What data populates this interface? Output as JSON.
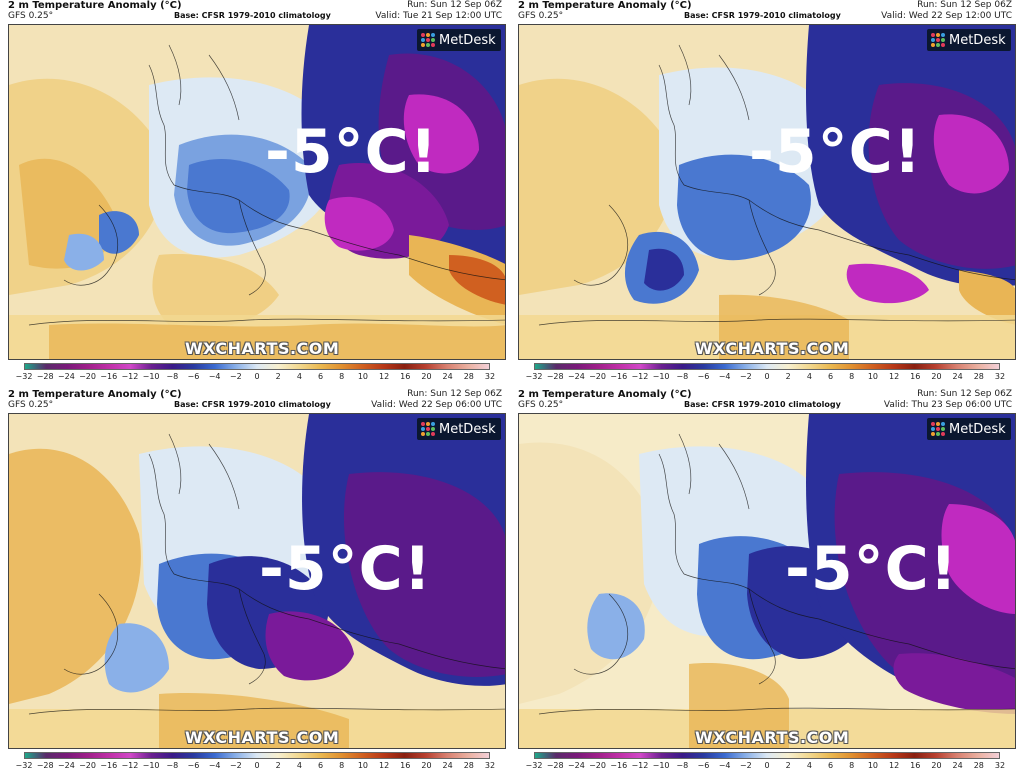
{
  "panels": [
    {
      "title": "2 m Temperature Anomaly (°C)",
      "model": "GFS 0.25°",
      "base": "Base: CFSR 1979-2010 climatology",
      "run": "Run: Sun 12 Sep 06Z",
      "valid": "Valid: Tue 21 Sep 12:00 UTC",
      "overlay_text": "-5°C!",
      "watermark": "WXCHARTS.COM",
      "brand": "MetDesk"
    },
    {
      "title": "2 m Temperature Anomaly (°C)",
      "model": "GFS 0.25°",
      "base": "Base: CFSR 1979-2010 climatology",
      "run": "Run: Sun 12 Sep 06Z",
      "valid": "Valid: Wed 22 Sep 12:00 UTC",
      "overlay_text": "-5°C!",
      "watermark": "WXCHARTS.COM",
      "brand": "MetDesk"
    },
    {
      "title": "2 m Temperature Anomaly (°C)",
      "model": "GFS 0.25°",
      "base": "Base: CFSR 1979-2010 climatology",
      "run": "Run: Sun 12 Sep 06Z",
      "valid": "Valid: Wed 22 Sep 06:00 UTC",
      "overlay_text": "-5°C!",
      "watermark": "WXCHARTS.COM",
      "brand": "MetDesk"
    },
    {
      "title": "2 m Temperature Anomaly (°C)",
      "model": "GFS 0.25°",
      "base": "Base: CFSR 1979-2010 climatology",
      "run": "Run: Sun 12 Sep 06Z",
      "valid": "Valid: Thu 23 Sep 06:00 UTC",
      "overlay_text": "-5°C!",
      "watermark": "WXCHARTS.COM",
      "brand": "MetDesk"
    }
  ],
  "colorbar": {
    "ticks": [
      "−32",
      "−28",
      "−24",
      "−20",
      "−16",
      "−12",
      "−10",
      "−8",
      "−6",
      "−4",
      "−2",
      "0",
      "2",
      "4",
      "6",
      "8",
      "10",
      "12",
      "16",
      "20",
      "24",
      "28",
      "32"
    ],
    "colors": [
      "#1fa88a",
      "#5a2a6a",
      "#7a1a7a",
      "#a0208a",
      "#c030a8",
      "#d048c8",
      "#6a2090",
      "#3a1a88",
      "#2a3aa0",
      "#3a6ad0",
      "#8ab0e8",
      "#dce8f4",
      "#f8f0d0",
      "#f2d890",
      "#eab850",
      "#e09030",
      "#d06020",
      "#b83818",
      "#8a2010",
      "#b84030",
      "#d88070",
      "#eab0a0",
      "#f4d0d8"
    ]
  },
  "colors": {
    "land_warm": "#f3e3b8",
    "sea_warm": "#f6ebc8",
    "orange": "#e9b555",
    "light_blue": "#dde9f4",
    "blue": "#4a78d0",
    "dark_blue": "#2a2f9a",
    "purple": "#5a1a8a",
    "magenta": "#c02ac0"
  }
}
